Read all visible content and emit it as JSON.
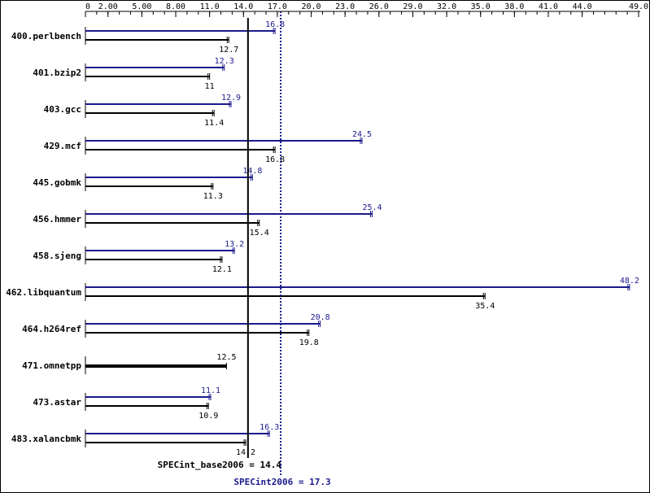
{
  "chart_data": {
    "type": "bar",
    "orientation": "horizontal",
    "axis_ticks": [
      "0",
      "2.00",
      "5.00",
      "8.00",
      "11.0",
      "14.0",
      "17.0",
      "20.0",
      "23.0",
      "26.0",
      "29.0",
      "32.0",
      "35.0",
      "38.0",
      "41.0",
      "44.0",
      "49.0"
    ],
    "xlim": [
      0,
      49
    ],
    "colors": {
      "peak": "#1a1a8c",
      "base": "#000000"
    },
    "categories": [
      "400.perlbench",
      "401.bzip2",
      "403.gcc",
      "429.mcf",
      "445.gobmk",
      "456.hmmer",
      "458.sjeng",
      "462.libquantum",
      "464.h264ref",
      "471.omnetpp",
      "473.astar",
      "483.xalancbmk"
    ],
    "series": [
      {
        "key": "peak",
        "values": [
          16.8,
          12.3,
          12.9,
          24.5,
          14.8,
          25.4,
          13.2,
          48.2,
          20.8,
          null,
          11.1,
          16.3
        ]
      },
      {
        "key": "base",
        "values": [
          12.7,
          11.0,
          11.4,
          16.8,
          11.3,
          15.4,
          12.1,
          35.4,
          19.8,
          12.5,
          10.9,
          14.2
        ]
      }
    ],
    "reference_lines": [
      {
        "label": "SPECint_base2006 = 14.4",
        "value": 14.4,
        "style": "solid"
      },
      {
        "label": "SPECint2006 = 17.3",
        "value": 17.3,
        "style": "dotted"
      }
    ]
  }
}
